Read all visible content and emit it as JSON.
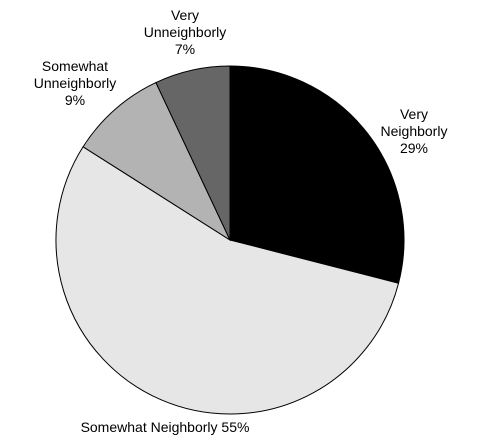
{
  "chart_data": {
    "type": "pie",
    "title": "",
    "slices": [
      {
        "label_lines": [
          "Very",
          "Neighborly"
        ],
        "pct_label": "29%",
        "value": 29,
        "color": "#000000"
      },
      {
        "label_lines": [
          "Somewhat Neighborly"
        ],
        "pct_label": "55%",
        "value": 55,
        "color": "#e6e6e6"
      },
      {
        "label_lines": [
          "Somewhat",
          "Unneighborly"
        ],
        "pct_label": "9%",
        "value": 9,
        "color": "#b3b3b3"
      },
      {
        "label_lines": [
          "Very",
          "Unneighborly"
        ],
        "pct_label": "7%",
        "value": 7,
        "color": "#666666"
      }
    ],
    "start_angle": "12 o'clock",
    "direction": "clockwise",
    "legend": "none"
  }
}
